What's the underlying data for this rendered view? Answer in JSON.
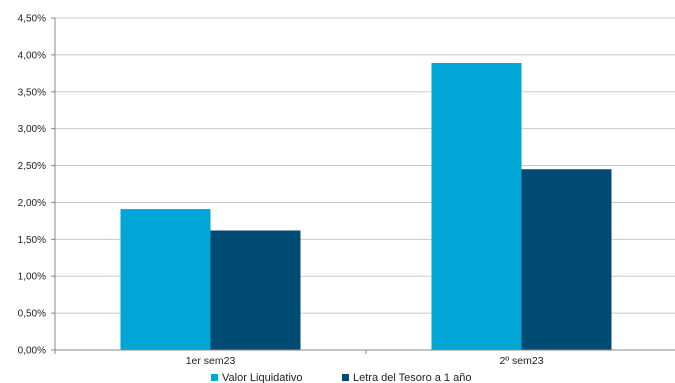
{
  "chart_data": {
    "type": "bar",
    "categories": [
      "1er sem23",
      "2º sem23"
    ],
    "series": [
      {
        "name": "Valor Liquidativo",
        "values": [
          1.91,
          3.89
        ],
        "color": "#00A6D6"
      },
      {
        "name": "Letra del Tesoro a 1 año",
        "values": [
          1.62,
          2.45
        ],
        "color": "#004B73"
      }
    ],
    "yticks": [
      "0,00%",
      "0,50%",
      "1,00%",
      "1,50%",
      "2,00%",
      "2,50%",
      "3,00%",
      "3,50%",
      "4,00%",
      "4,50%"
    ],
    "ylim": [
      0,
      4.5
    ],
    "ytick_step": 0.5,
    "grid": true,
    "legend_position": "bottom",
    "title": "",
    "xlabel": "",
    "ylabel": ""
  }
}
